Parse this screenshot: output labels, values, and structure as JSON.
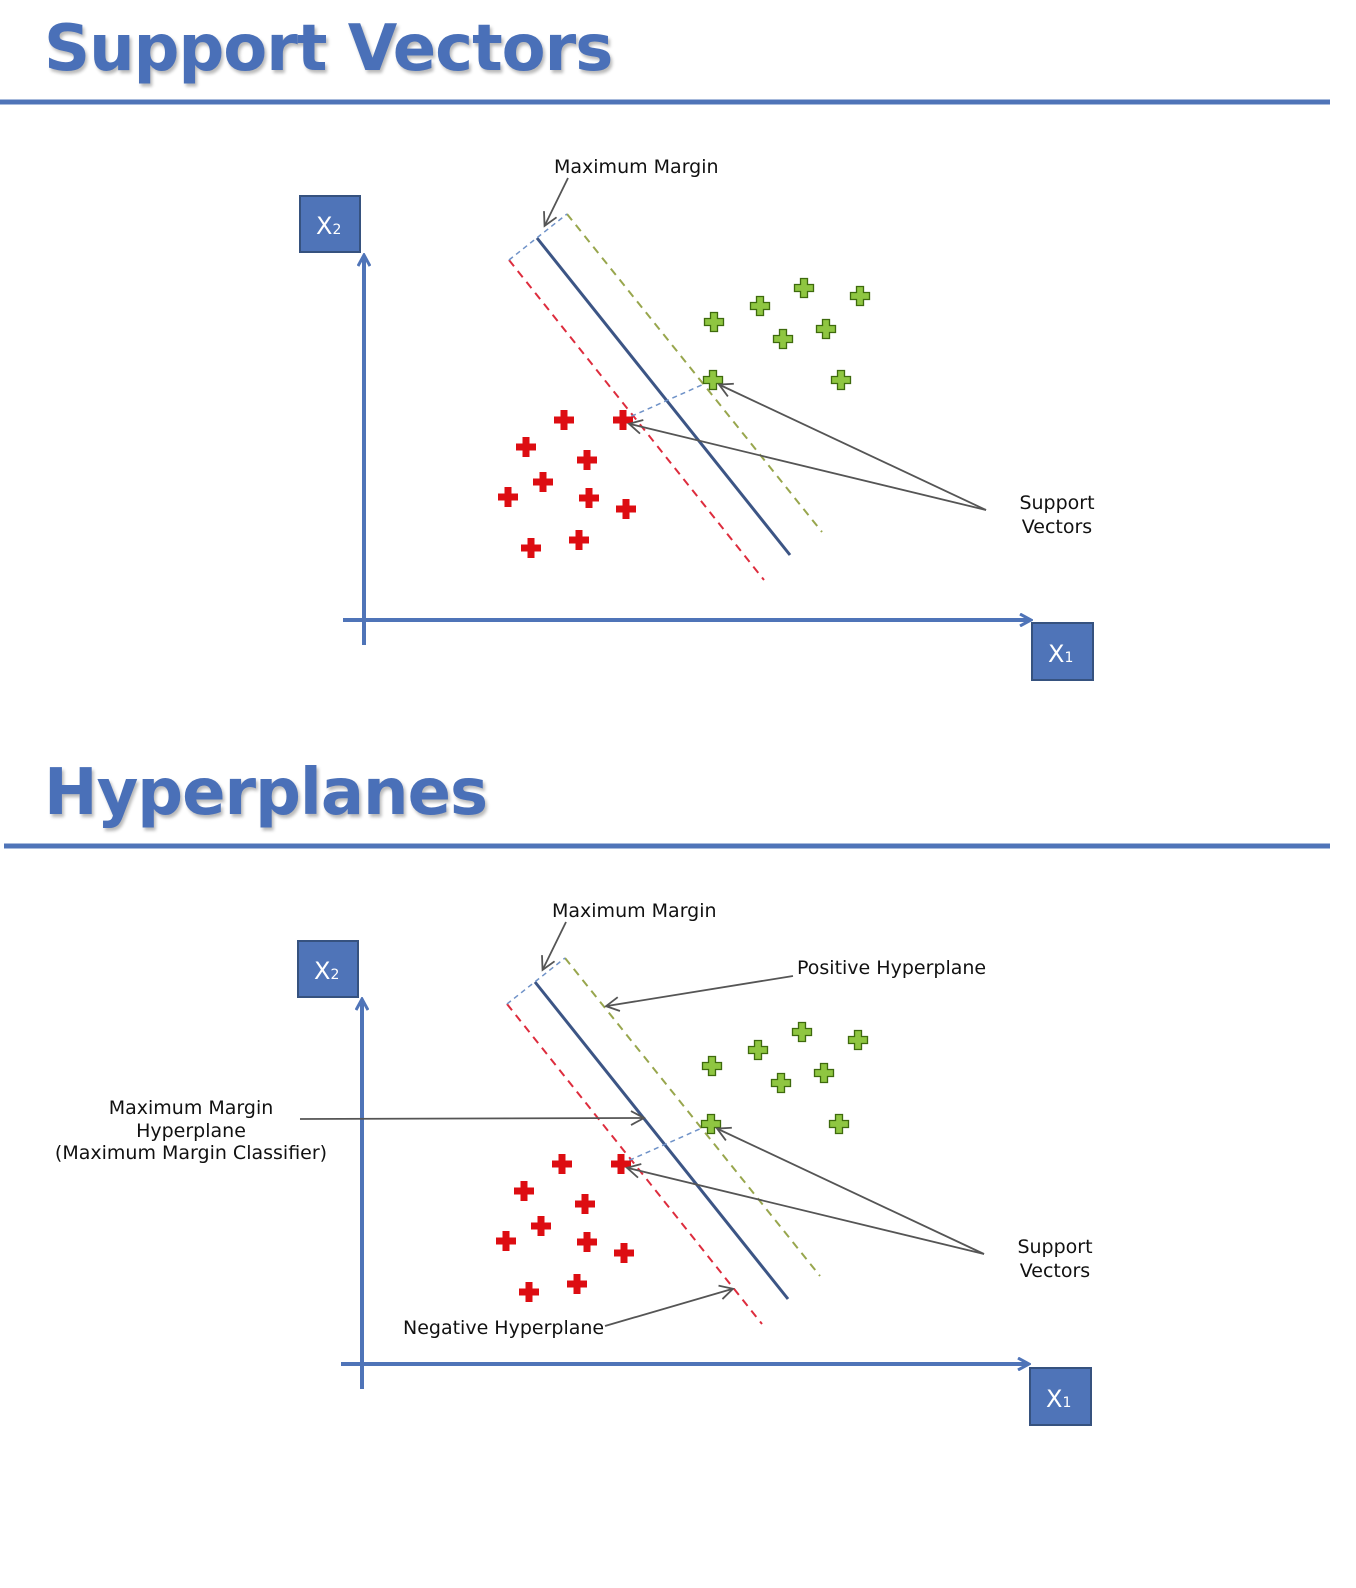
{
  "colors": {
    "title": "#4a70b8",
    "rule": "#4f74b8",
    "axis": "#4f74b8",
    "box_fill": "#4f74b8",
    "box_border": "#36527f",
    "main_line": "#3c5585",
    "negative_line": "#dd2c3d",
    "positive_line": "#98a64d",
    "margin_dash": "#6f92c8",
    "red_point": "#dd0d12",
    "green_point": "#8fc641",
    "green_point_border": "#3e6a0d",
    "arrow": "#555555"
  },
  "panels": [
    {
      "title": "Support Vectors",
      "axis_x_label": "X",
      "axis_x_sub": "1",
      "axis_y_label": "X",
      "axis_y_sub": "2",
      "annotations": {
        "maximum_margin": "Maximum Margin",
        "support_vectors_line1": "Support",
        "support_vectors_line2": "Vectors"
      }
    },
    {
      "title": "Hyperplanes",
      "axis_x_label": "X",
      "axis_x_sub": "1",
      "axis_y_label": "X",
      "axis_y_sub": "2",
      "annotations": {
        "maximum_margin": "Maximum Margin",
        "positive_hyperplane": "Positive Hyperplane",
        "negative_hyperplane": "Negative Hyperplane",
        "mm_hyperplane_line1": "Maximum Margin",
        "mm_hyperplane_line2": "Hyperplane",
        "mm_hyperplane_line3": "(Maximum Margin Classifier)",
        "support_vectors_line1": "Support",
        "support_vectors_line2": "Vectors"
      }
    }
  ]
}
